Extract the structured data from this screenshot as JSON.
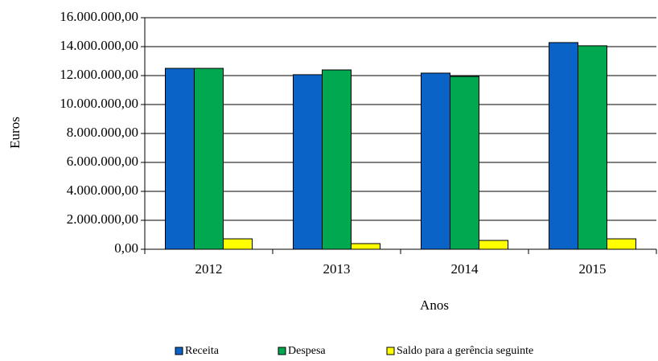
{
  "chart_data": {
    "type": "bar",
    "categories": [
      "2012",
      "2013",
      "2014",
      "2015"
    ],
    "series": [
      {
        "name": "Receita",
        "color": "#0a64c8",
        "values": [
          12500000,
          12060000,
          12170000,
          14280000
        ]
      },
      {
        "name": "Despesa",
        "color": "#00a84f",
        "values": [
          12500000,
          12390000,
          11940000,
          14060000
        ]
      },
      {
        "name": "Saldo para a gerência seguinte",
        "color": "#ffff00",
        "values": [
          720000,
          390000,
          610000,
          720000
        ]
      }
    ],
    "ylim": [
      0,
      16000000
    ],
    "yticks": [
      {
        "value": 0,
        "label": "0,00"
      },
      {
        "value": 2000000,
        "label": "2.000.000,00"
      },
      {
        "value": 4000000,
        "label": "4.000.000,00"
      },
      {
        "value": 6000000,
        "label": "6.000.000,00"
      },
      {
        "value": 8000000,
        "label": "8.000.000,00"
      },
      {
        "value": 10000000,
        "label": "10.000.000,00"
      },
      {
        "value": 12000000,
        "label": "12.000.000,00"
      },
      {
        "value": 14000000,
        "label": "14.000.000,00"
      },
      {
        "value": 16000000,
        "label": "16.000.000,00"
      }
    ],
    "y_label": "Euros",
    "x_label": "Anos",
    "grid": true,
    "legend": "bottom"
  }
}
